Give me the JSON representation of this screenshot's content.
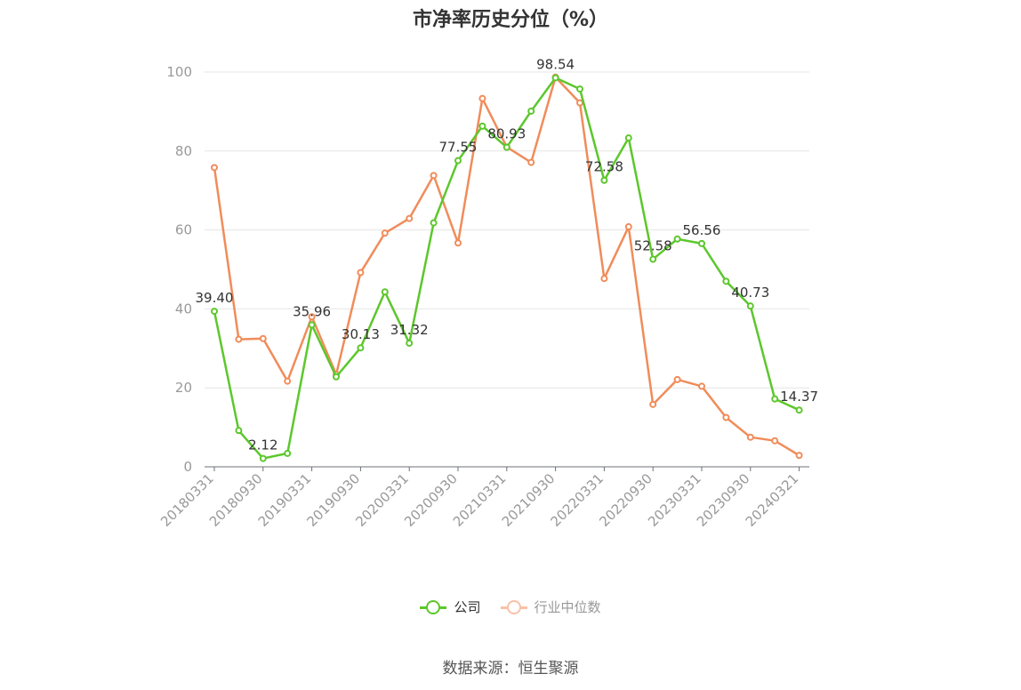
{
  "title": "市净率历史分位（%）",
  "source": "数据来源：恒生聚源",
  "legend": [
    {
      "label": "公司",
      "color": "#5cc72c",
      "text_color": "#333333"
    },
    {
      "label": "行业中位数",
      "color": "#f4976c",
      "text_color": "#999999"
    }
  ],
  "chart_data": {
    "type": "line",
    "title": "市净率历史分位（%）",
    "ylim": [
      0,
      100
    ],
    "yticks": [
      0,
      20,
      40,
      60,
      80,
      100
    ],
    "grid": true,
    "legend_position": "bottom-center",
    "x_tick_labels": [
      "20180331",
      "20180930",
      "20190331",
      "20190930",
      "20200331",
      "20200930",
      "20210331",
      "20210930",
      "20220331",
      "20220930",
      "20230331",
      "20230930",
      "20240321"
    ],
    "x": [
      "20180331",
      "20180630",
      "20180930",
      "20181231",
      "20190331",
      "20190630",
      "20190930",
      "20191231",
      "20200331",
      "20200630",
      "20200930",
      "20201231",
      "20210331",
      "20210630",
      "20210930",
      "20211231",
      "20220331",
      "20220630",
      "20220930",
      "20221231",
      "20230331",
      "20230630",
      "20230930",
      "20231231",
      "20240321"
    ],
    "series": [
      {
        "name": "公司",
        "color": "#5cc72c",
        "values": [
          39.4,
          9.2,
          2.12,
          3.4,
          35.96,
          22.8,
          30.13,
          44.3,
          31.32,
          61.8,
          77.55,
          86.3,
          80.93,
          90.1,
          98.54,
          95.7,
          72.58,
          83.3,
          52.58,
          57.7,
          56.56,
          47.0,
          40.73,
          17.2,
          14.37
        ],
        "labels": {
          "0": "39.40",
          "2": "2.12",
          "4": "35.96",
          "6": "30.13",
          "8": "31.32",
          "10": "77.55",
          "12": "80.93",
          "14": "98.54",
          "16": "72.58",
          "18": "52.58",
          "20": "56.56",
          "22": "40.73",
          "24": "14.37"
        }
      },
      {
        "name": "行业中位数",
        "color": "#f08c5a",
        "values": [
          75.8,
          32.3,
          32.5,
          21.7,
          38.0,
          23.4,
          49.2,
          59.2,
          62.9,
          73.8,
          56.7,
          93.3,
          81.0,
          77.1,
          98.7,
          92.2,
          47.7,
          60.8,
          15.8,
          22.1,
          20.4,
          12.5,
          7.5,
          6.6,
          2.9
        ]
      }
    ]
  }
}
